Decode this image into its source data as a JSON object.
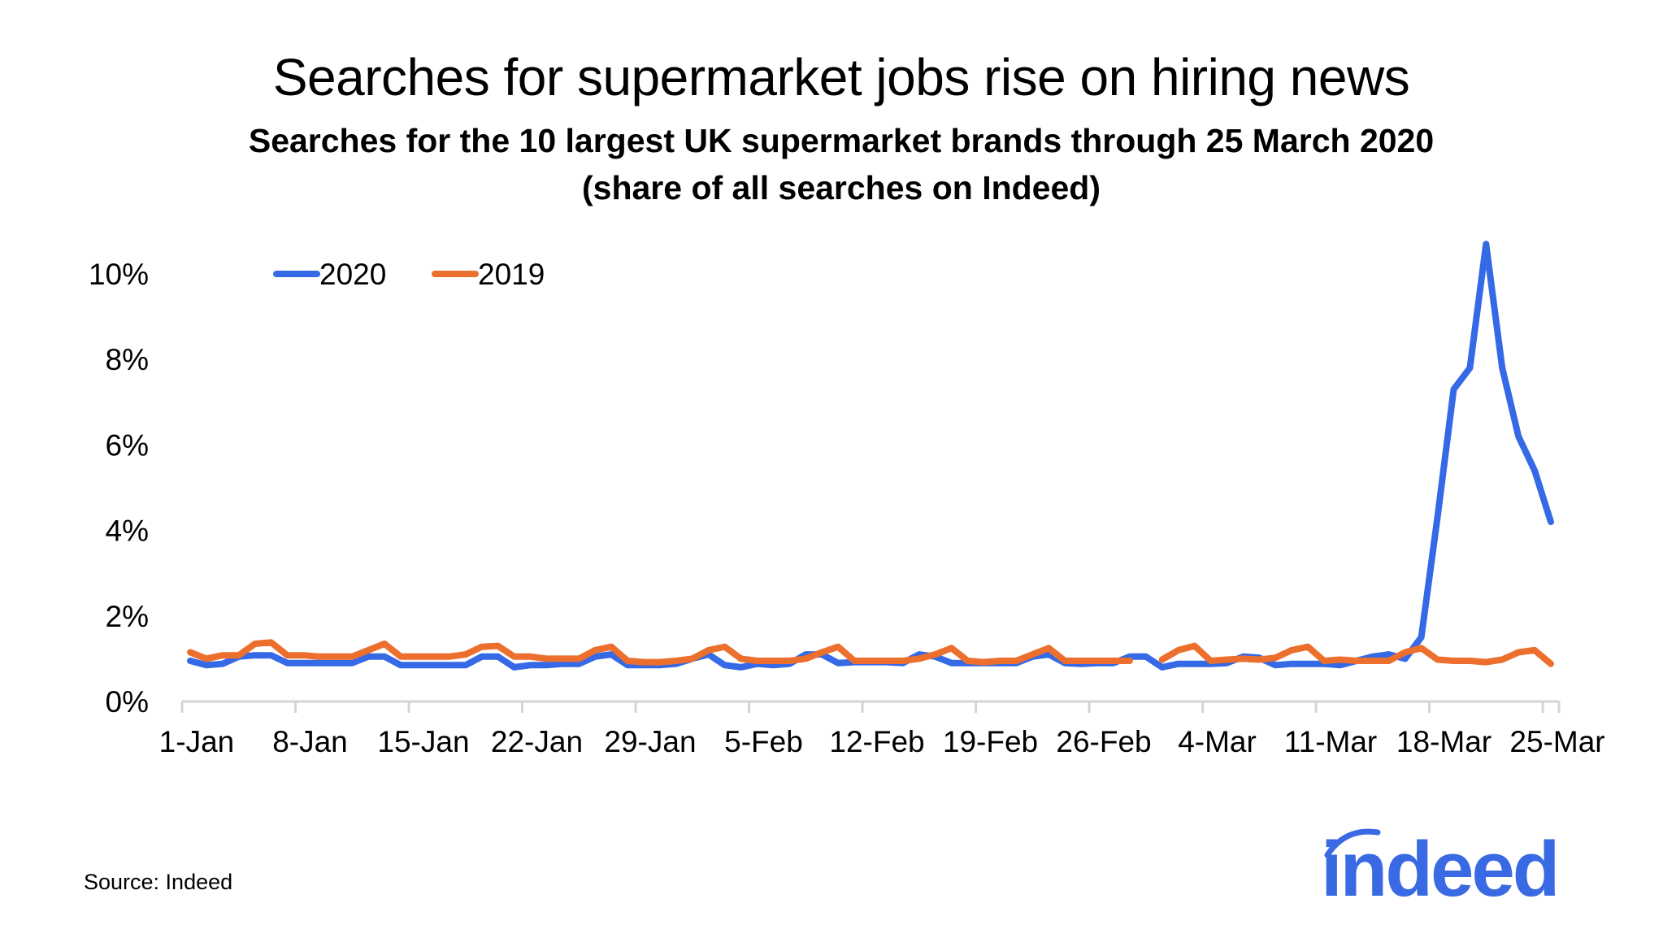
{
  "chart_data": {
    "type": "line",
    "title": "Searches for supermarket jobs rise on hiring news",
    "subtitle": [
      "Searches for the 10 largest UK supermarket brands through 25 March 2020",
      "(share of all searches on Indeed)"
    ],
    "xlabel": "",
    "ylabel": "",
    "ylim": [
      0,
      10
    ],
    "y_ticks": [
      "0%",
      "2%",
      "4%",
      "6%",
      "8%",
      "10%"
    ],
    "y_tick_values": [
      0,
      2,
      4,
      6,
      8,
      10
    ],
    "x_tick_labels": [
      "1-Jan",
      "8-Jan",
      "15-Jan",
      "22-Jan",
      "29-Jan",
      "5-Feb",
      "12-Feb",
      "19-Feb",
      "26-Feb",
      "4-Mar",
      "11-Mar",
      "18-Mar",
      "25-Mar"
    ],
    "grid": false,
    "legend_position": "top-left",
    "series": [
      {
        "name": "2020",
        "color": "#3569e6",
        "values": [
          0.95,
          0.85,
          0.88,
          1.05,
          1.08,
          1.08,
          0.9,
          0.9,
          0.9,
          0.9,
          0.9,
          1.05,
          1.05,
          0.85,
          0.85,
          0.85,
          0.85,
          0.85,
          1.05,
          1.05,
          0.8,
          0.85,
          0.85,
          0.88,
          0.88,
          1.05,
          1.1,
          0.85,
          0.85,
          0.85,
          0.88,
          1.0,
          1.1,
          0.85,
          0.8,
          0.88,
          0.85,
          0.88,
          1.1,
          1.1,
          0.9,
          0.92,
          0.92,
          0.92,
          0.9,
          1.1,
          1.05,
          0.9,
          0.9,
          0.9,
          0.9,
          0.9,
          1.05,
          1.1,
          0.9,
          0.88,
          0.9,
          0.9,
          1.05,
          1.05,
          0.8,
          0.88,
          0.88,
          0.88,
          0.9,
          1.05,
          1.02,
          0.85,
          0.88,
          0.88,
          0.88,
          0.85,
          0.95,
          1.05,
          1.1,
          1.0,
          1.5,
          4.3,
          7.3,
          7.8,
          10.7,
          7.8,
          6.2,
          5.4,
          4.2
        ]
      },
      {
        "name": "2019",
        "color": "#ed6f2d",
        "values": [
          1.15,
          1.0,
          1.08,
          1.08,
          1.35,
          1.38,
          1.08,
          1.08,
          1.05,
          1.05,
          1.05,
          1.2,
          1.35,
          1.05,
          1.05,
          1.05,
          1.05,
          1.1,
          1.28,
          1.3,
          1.05,
          1.05,
          1.0,
          1.0,
          1.0,
          1.2,
          1.28,
          0.95,
          0.92,
          0.92,
          0.95,
          1.0,
          1.2,
          1.28,
          1.0,
          0.95,
          0.95,
          0.95,
          1.0,
          1.15,
          1.28,
          0.95,
          0.95,
          0.95,
          0.95,
          1.0,
          1.1,
          1.25,
          0.95,
          0.92,
          0.95,
          0.95,
          1.1,
          1.25,
          0.95,
          0.95,
          0.95,
          0.95,
          0.95,
          null,
          0.98,
          1.2,
          1.3,
          0.95,
          0.98,
          1.0,
          0.98,
          1.02,
          1.2,
          1.28,
          0.95,
          0.98,
          0.95,
          0.95,
          0.95,
          1.15,
          1.25,
          0.98,
          0.95,
          0.95,
          0.92,
          0.98,
          1.15,
          1.2,
          0.88
        ]
      }
    ]
  },
  "source": "Source: Indeed",
  "logo": {
    "text": "indeed",
    "color": "#3a6ae3"
  }
}
